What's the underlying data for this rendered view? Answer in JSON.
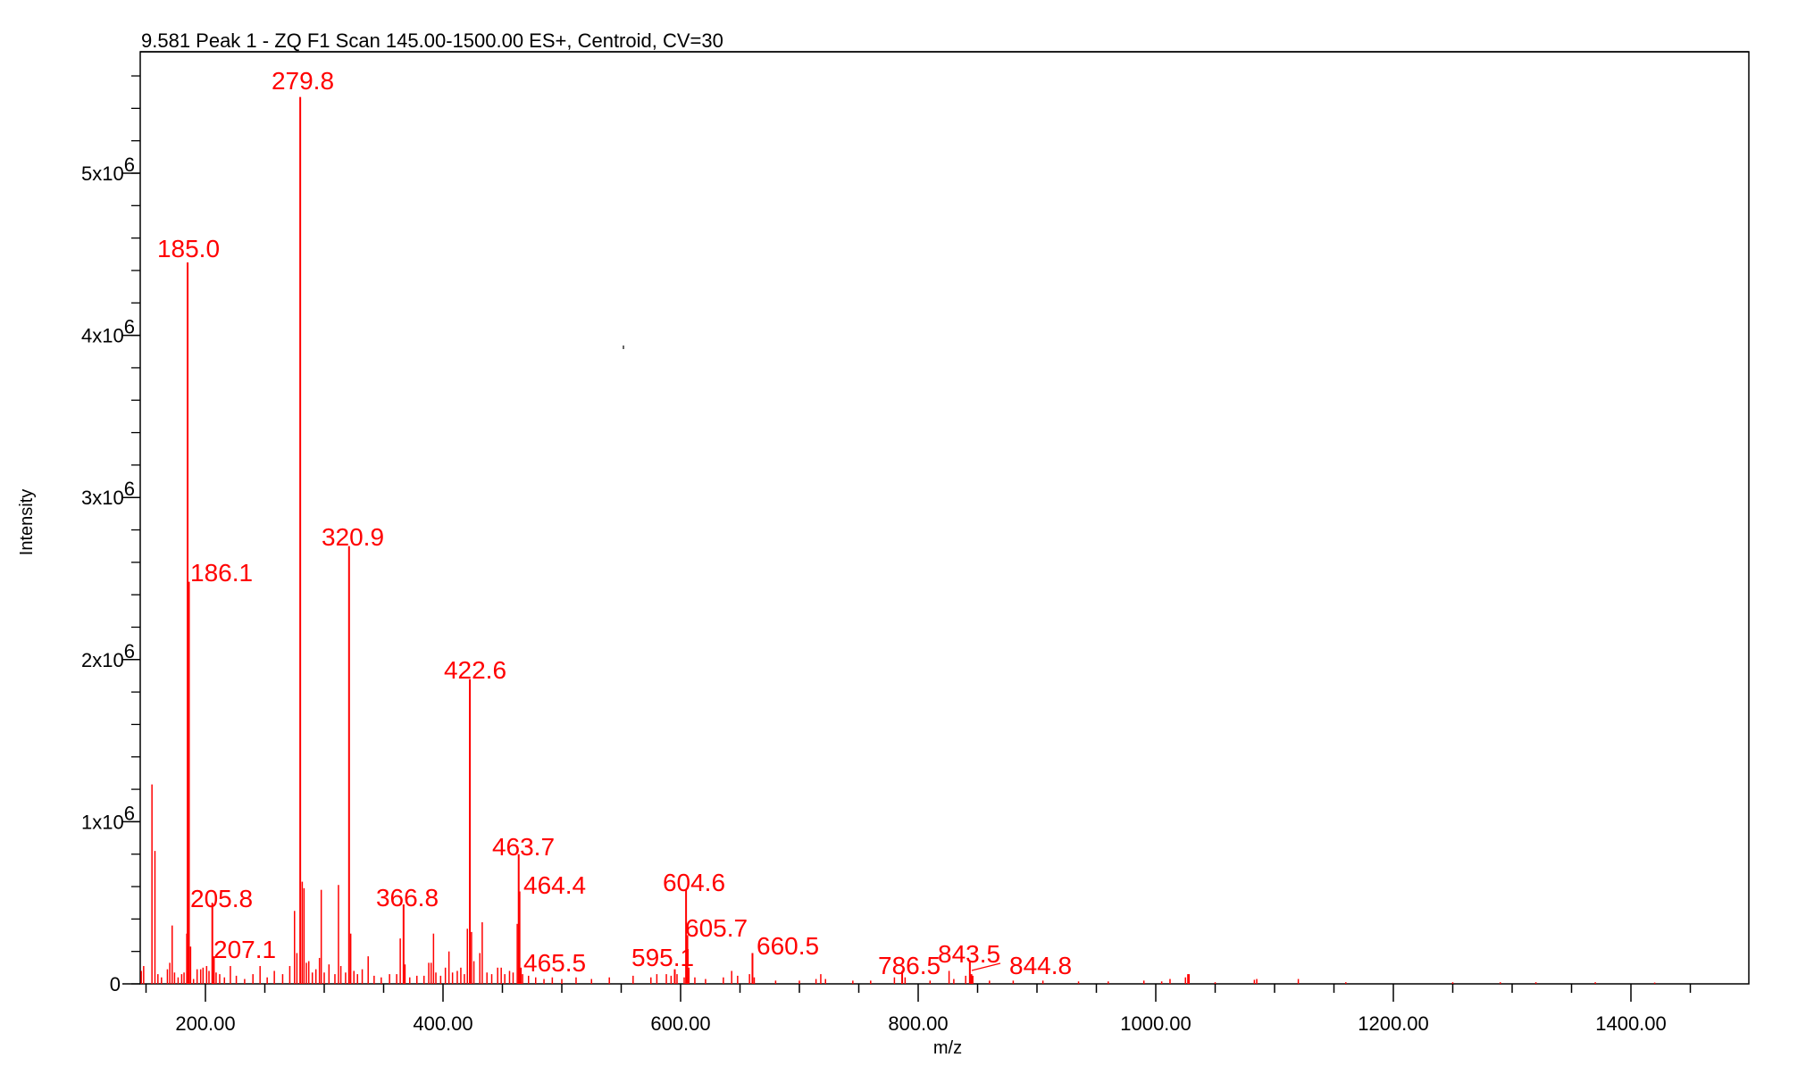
{
  "chart_data": {
    "type": "bar",
    "title": "9.581 Peak 1 - ZQ F1 Scan 145.00-1500.00 ES+, Centroid, CV=30",
    "xlabel": "m/z",
    "ylabel": "Intensity",
    "xlim": [
      145,
      1500
    ],
    "ylim": [
      0,
      5750000
    ],
    "x_ticks": [
      {
        "value": 200,
        "label": "200.00"
      },
      {
        "value": 400,
        "label": "400.00"
      },
      {
        "value": 600,
        "label": "600.00"
      },
      {
        "value": 800,
        "label": "800.00"
      },
      {
        "value": 1000,
        "label": "1000.00"
      },
      {
        "value": 1200,
        "label": "1200.00"
      },
      {
        "value": 1400,
        "label": "1400.00"
      }
    ],
    "x_minor_step": 50,
    "y_ticks": [
      {
        "value": 0,
        "label": "0",
        "exp": ""
      },
      {
        "value": 1000000,
        "label": "1x10",
        "exp": "6"
      },
      {
        "value": 2000000,
        "label": "2x10",
        "exp": "6"
      },
      {
        "value": 3000000,
        "label": "3x10",
        "exp": "6"
      },
      {
        "value": 4000000,
        "label": "4x10",
        "exp": "6"
      },
      {
        "value": 5000000,
        "label": "5x10",
        "exp": "6"
      }
    ],
    "y_minor_step": 200000,
    "grid": false,
    "legend": null,
    "series_color": "#ff0000",
    "labeled_peaks": [
      {
        "mz": 279.8,
        "intensity": 5470000,
        "label": "279.8"
      },
      {
        "mz": 185.0,
        "intensity": 4450000,
        "label": "185.0"
      },
      {
        "mz": 320.9,
        "intensity": 2700000,
        "label": "320.9"
      },
      {
        "mz": 186.1,
        "intensity": 2480000,
        "label": "186.1"
      },
      {
        "mz": 422.6,
        "intensity": 1880000,
        "label": "422.6"
      },
      {
        "mz": 463.7,
        "intensity": 800000,
        "label": "463.7"
      },
      {
        "mz": 464.4,
        "intensity": 570000,
        "label": "464.4"
      },
      {
        "mz": 604.6,
        "intensity": 580000,
        "label": "604.6"
      },
      {
        "mz": 205.8,
        "intensity": 500000,
        "label": "205.8"
      },
      {
        "mz": 366.8,
        "intensity": 490000,
        "label": "366.8"
      },
      {
        "mz": 605.7,
        "intensity": 300000,
        "label": "605.7"
      },
      {
        "mz": 660.5,
        "intensity": 190000,
        "label": "660.5"
      },
      {
        "mz": 207.1,
        "intensity": 170000,
        "label": "207.1"
      },
      {
        "mz": 843.5,
        "intensity": 140000,
        "label": "843.5"
      },
      {
        "mz": 465.5,
        "intensity": 100000,
        "label": "465.5"
      },
      {
        "mz": 595.1,
        "intensity": 90000,
        "label": "595.1"
      },
      {
        "mz": 786.5,
        "intensity": 80000,
        "label": "786.5"
      },
      {
        "mz": 844.8,
        "intensity": 60000,
        "label": "844.8"
      }
    ],
    "other_peaks": [
      {
        "mz": 146,
        "intensity": 80000
      },
      {
        "mz": 148,
        "intensity": 110000
      },
      {
        "mz": 155,
        "intensity": 1230000
      },
      {
        "mz": 157.5,
        "intensity": 820000
      },
      {
        "mz": 160,
        "intensity": 60000
      },
      {
        "mz": 163,
        "intensity": 40000
      },
      {
        "mz": 168,
        "intensity": 90000
      },
      {
        "mz": 170,
        "intensity": 130000
      },
      {
        "mz": 172,
        "intensity": 360000
      },
      {
        "mz": 174,
        "intensity": 70000
      },
      {
        "mz": 177,
        "intensity": 40000
      },
      {
        "mz": 180,
        "intensity": 60000
      },
      {
        "mz": 182,
        "intensity": 70000
      },
      {
        "mz": 184.3,
        "intensity": 310000
      },
      {
        "mz": 187.5,
        "intensity": 230000
      },
      {
        "mz": 190,
        "intensity": 30000
      },
      {
        "mz": 193,
        "intensity": 90000
      },
      {
        "mz": 196,
        "intensity": 90000
      },
      {
        "mz": 198,
        "intensity": 100000
      },
      {
        "mz": 201,
        "intensity": 110000
      },
      {
        "mz": 203,
        "intensity": 80000
      },
      {
        "mz": 209,
        "intensity": 70000
      },
      {
        "mz": 212,
        "intensity": 60000
      },
      {
        "mz": 216,
        "intensity": 40000
      },
      {
        "mz": 221,
        "intensity": 110000
      },
      {
        "mz": 226,
        "intensity": 50000
      },
      {
        "mz": 233,
        "intensity": 30000
      },
      {
        "mz": 240,
        "intensity": 60000
      },
      {
        "mz": 246,
        "intensity": 110000
      },
      {
        "mz": 252,
        "intensity": 40000
      },
      {
        "mz": 258,
        "intensity": 80000
      },
      {
        "mz": 265,
        "intensity": 60000
      },
      {
        "mz": 271,
        "intensity": 110000
      },
      {
        "mz": 275,
        "intensity": 450000
      },
      {
        "mz": 277,
        "intensity": 190000
      },
      {
        "mz": 281.5,
        "intensity": 630000
      },
      {
        "mz": 283,
        "intensity": 590000
      },
      {
        "mz": 285,
        "intensity": 130000
      },
      {
        "mz": 287,
        "intensity": 140000
      },
      {
        "mz": 290,
        "intensity": 70000
      },
      {
        "mz": 293,
        "intensity": 90000
      },
      {
        "mz": 296,
        "intensity": 160000
      },
      {
        "mz": 297.5,
        "intensity": 580000
      },
      {
        "mz": 300,
        "intensity": 70000
      },
      {
        "mz": 304,
        "intensity": 120000
      },
      {
        "mz": 309,
        "intensity": 60000
      },
      {
        "mz": 312,
        "intensity": 610000
      },
      {
        "mz": 314,
        "intensity": 110000
      },
      {
        "mz": 318,
        "intensity": 70000
      },
      {
        "mz": 322.3,
        "intensity": 310000
      },
      {
        "mz": 325,
        "intensity": 80000
      },
      {
        "mz": 328,
        "intensity": 60000
      },
      {
        "mz": 332,
        "intensity": 90000
      },
      {
        "mz": 337,
        "intensity": 170000
      },
      {
        "mz": 342,
        "intensity": 50000
      },
      {
        "mz": 348,
        "intensity": 40000
      },
      {
        "mz": 355,
        "intensity": 60000
      },
      {
        "mz": 361,
        "intensity": 60000
      },
      {
        "mz": 364,
        "intensity": 280000
      },
      {
        "mz": 368,
        "intensity": 120000
      },
      {
        "mz": 372,
        "intensity": 40000
      },
      {
        "mz": 378,
        "intensity": 50000
      },
      {
        "mz": 384,
        "intensity": 50000
      },
      {
        "mz": 388,
        "intensity": 130000
      },
      {
        "mz": 390,
        "intensity": 130000
      },
      {
        "mz": 392,
        "intensity": 310000
      },
      {
        "mz": 394,
        "intensity": 70000
      },
      {
        "mz": 398,
        "intensity": 50000
      },
      {
        "mz": 402,
        "intensity": 100000
      },
      {
        "mz": 405,
        "intensity": 200000
      },
      {
        "mz": 408,
        "intensity": 70000
      },
      {
        "mz": 412,
        "intensity": 80000
      },
      {
        "mz": 415,
        "intensity": 100000
      },
      {
        "mz": 418,
        "intensity": 60000
      },
      {
        "mz": 420.5,
        "intensity": 340000
      },
      {
        "mz": 424,
        "intensity": 320000
      },
      {
        "mz": 426,
        "intensity": 140000
      },
      {
        "mz": 431,
        "intensity": 190000
      },
      {
        "mz": 433,
        "intensity": 380000
      },
      {
        "mz": 437,
        "intensity": 70000
      },
      {
        "mz": 441,
        "intensity": 60000
      },
      {
        "mz": 446,
        "intensity": 100000
      },
      {
        "mz": 449,
        "intensity": 100000
      },
      {
        "mz": 452,
        "intensity": 60000
      },
      {
        "mz": 456,
        "intensity": 80000
      },
      {
        "mz": 459,
        "intensity": 70000
      },
      {
        "mz": 462.5,
        "intensity": 370000
      },
      {
        "mz": 467,
        "intensity": 60000
      },
      {
        "mz": 472,
        "intensity": 50000
      },
      {
        "mz": 478,
        "intensity": 40000
      },
      {
        "mz": 485,
        "intensity": 30000
      },
      {
        "mz": 492,
        "intensity": 40000
      },
      {
        "mz": 500,
        "intensity": 30000
      },
      {
        "mz": 512,
        "intensity": 40000
      },
      {
        "mz": 525,
        "intensity": 30000
      },
      {
        "mz": 540,
        "intensity": 40000
      },
      {
        "mz": 560,
        "intensity": 50000
      },
      {
        "mz": 575,
        "intensity": 40000
      },
      {
        "mz": 580,
        "intensity": 60000
      },
      {
        "mz": 588,
        "intensity": 60000
      },
      {
        "mz": 592,
        "intensity": 50000
      },
      {
        "mz": 597,
        "intensity": 60000
      },
      {
        "mz": 603,
        "intensity": 40000
      },
      {
        "mz": 607,
        "intensity": 100000
      },
      {
        "mz": 612,
        "intensity": 40000
      },
      {
        "mz": 621,
        "intensity": 30000
      },
      {
        "mz": 636,
        "intensity": 40000
      },
      {
        "mz": 643,
        "intensity": 80000
      },
      {
        "mz": 648,
        "intensity": 50000
      },
      {
        "mz": 658,
        "intensity": 60000
      },
      {
        "mz": 662,
        "intensity": 40000
      },
      {
        "mz": 680,
        "intensity": 20000
      },
      {
        "mz": 700,
        "intensity": 20000
      },
      {
        "mz": 714,
        "intensity": 30000
      },
      {
        "mz": 718,
        "intensity": 60000
      },
      {
        "mz": 722,
        "intensity": 30000
      },
      {
        "mz": 745,
        "intensity": 20000
      },
      {
        "mz": 760,
        "intensity": 20000
      },
      {
        "mz": 780,
        "intensity": 40000
      },
      {
        "mz": 789,
        "intensity": 40000
      },
      {
        "mz": 810,
        "intensity": 20000
      },
      {
        "mz": 826,
        "intensity": 80000
      },
      {
        "mz": 830,
        "intensity": 30000
      },
      {
        "mz": 840,
        "intensity": 50000
      },
      {
        "mz": 846,
        "intensity": 50000
      },
      {
        "mz": 860,
        "intensity": 20000
      },
      {
        "mz": 880,
        "intensity": 20000
      },
      {
        "mz": 905,
        "intensity": 20000
      },
      {
        "mz": 935,
        "intensity": 15000
      },
      {
        "mz": 960,
        "intensity": 15000
      },
      {
        "mz": 990,
        "intensity": 20000
      },
      {
        "mz": 1005,
        "intensity": 15000
      },
      {
        "mz": 1012,
        "intensity": 30000
      },
      {
        "mz": 1025,
        "intensity": 40000
      },
      {
        "mz": 1027,
        "intensity": 60000
      },
      {
        "mz": 1028,
        "intensity": 60000
      },
      {
        "mz": 1050,
        "intensity": 10000
      },
      {
        "mz": 1083,
        "intensity": 25000
      },
      {
        "mz": 1085,
        "intensity": 30000
      },
      {
        "mz": 1120,
        "intensity": 30000
      },
      {
        "mz": 1160,
        "intensity": 10000
      },
      {
        "mz": 1250,
        "intensity": 10000
      },
      {
        "mz": 1290,
        "intensity": 10000
      },
      {
        "mz": 1320,
        "intensity": 10000
      },
      {
        "mz": 1370,
        "intensity": 10000
      },
      {
        "mz": 1420,
        "intensity": 8000
      }
    ],
    "label_positions": {
      "279.8": [
        339,
        100
      ],
      "185.0": [
        211,
        288
      ],
      "320.9": [
        395,
        611
      ],
      "186.1": [
        213,
        651
      ],
      "422.6": [
        532,
        760
      ],
      "463.7": [
        586,
        958
      ],
      "464.4": [
        586,
        1001
      ],
      "205.8": [
        213,
        1016
      ],
      "366.8": [
        456,
        1015
      ],
      "604.6": [
        777,
        998
      ],
      "605.7": [
        767,
        1049
      ],
      "660.5": [
        847,
        1069
      ],
      "207.1": [
        239,
        1073
      ],
      "843.5": [
        1050,
        1078
      ],
      "465.5": [
        586,
        1088
      ],
      "595.1": [
        707,
        1082
      ],
      "786.5": [
        983,
        1091
      ],
      "844.8": [
        1130,
        1091
      ]
    },
    "label_anchor": {
      "279.8": "middle",
      "185.0": "middle",
      "320.9": "middle",
      "186.1": "start",
      "422.6": "middle",
      "463.7": "middle",
      "464.4": "start",
      "205.8": "start",
      "366.8": "middle",
      "604.6": "middle",
      "605.7": "start",
      "660.5": "start",
      "207.1": "start",
      "843.5": "start",
      "465.5": "start",
      "595.1": "start",
      "786.5": "start",
      "844.8": "start"
    },
    "leader_line": {
      "from": [
        1088,
        1087
      ],
      "to": [
        1120,
        1079
      ]
    },
    "stray_mark": [
      698,
      389
    ]
  }
}
